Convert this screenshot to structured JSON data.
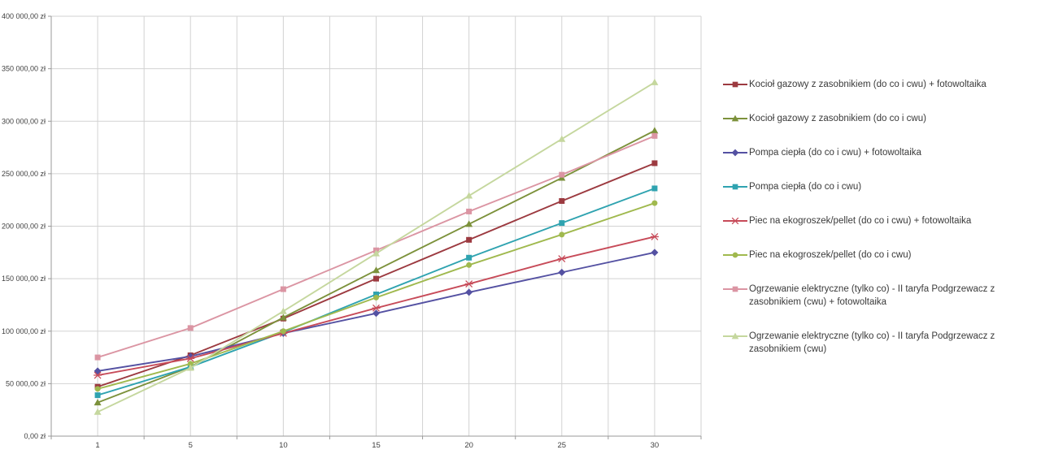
{
  "chart_data": {
    "type": "line",
    "title": "",
    "xlabel": "",
    "ylabel": "",
    "x_tick_labels": [
      "1",
      "5",
      "10",
      "15",
      "20",
      "25",
      "30"
    ],
    "y_tick_labels": [
      "0,00 zł",
      "50 000,00 zł",
      "100 000,00 zł",
      "150 000,00 zł",
      "200 000,00 zł",
      "250 000,00 zł",
      "300 000,00 zł",
      "350 000,00 zł",
      "400 000,00 zł"
    ],
    "y_tick_values": [
      0,
      50000,
      100000,
      150000,
      200000,
      250000,
      300000,
      350000,
      400000
    ],
    "ylim": [
      0,
      400000
    ],
    "grid": true,
    "legend_position": "right",
    "categories": [
      1,
      5,
      10,
      15,
      20,
      25,
      30
    ],
    "series": [
      {
        "name": "Kocioł gazowy z zasobnikiem (do co i cwu) + fotowoltaika",
        "color": "#9c3a40",
        "marker": "square",
        "values": [
          47000,
          77000,
          112000,
          150000,
          187000,
          224000,
          260000
        ]
      },
      {
        "name": "Kocioł gazowy z zasobnikiem (do co i cwu)",
        "color": "#7c913b",
        "marker": "triangle",
        "values": [
          32000,
          66000,
          113000,
          158000,
          202000,
          246000,
          291000
        ]
      },
      {
        "name": "Pompa ciepła (do co i cwu) + fotowoltaika",
        "color": "#5451a2",
        "marker": "diamond",
        "values": [
          62000,
          76000,
          98000,
          117000,
          137000,
          156000,
          175000
        ]
      },
      {
        "name": "Pompa ciepła (do co i cwu)",
        "color": "#2fa3b0",
        "marker": "square",
        "values": [
          39000,
          66000,
          99000,
          135000,
          170000,
          203000,
          236000
        ]
      },
      {
        "name": "Piec na ekogroszek/pellet (do co i cwu) + fotowoltaika",
        "color": "#c74b59",
        "marker": "xstar",
        "values": [
          58000,
          74000,
          98000,
          122000,
          145000,
          169000,
          190000
        ]
      },
      {
        "name": "Piec na ekogroszek/pellet (do co i cwu)",
        "color": "#a0b94e",
        "marker": "circle",
        "values": [
          45000,
          69000,
          100000,
          132000,
          163000,
          192000,
          222000
        ]
      },
      {
        "name": "Ogrzewanie elektryczne (tylko co) - II taryfa Podgrzewacz z zasobnikiem (cwu) + fotowoltaika",
        "color": "#db95a3",
        "marker": "square",
        "values": [
          75000,
          103000,
          140000,
          177000,
          214000,
          249000,
          286000
        ]
      },
      {
        "name": "Ogrzewanie elektryczne (tylko co) - II taryfa Podgrzewacz z zasobnikiem (cwu)",
        "color": "#c5d79e",
        "marker": "triangle",
        "values": [
          23000,
          65000,
          119000,
          174000,
          229000,
          283000,
          337000
        ]
      }
    ],
    "colors": {
      "gridline": "#d2d2d2",
      "axis": "#9a9a9a",
      "background": "#ffffff"
    }
  }
}
